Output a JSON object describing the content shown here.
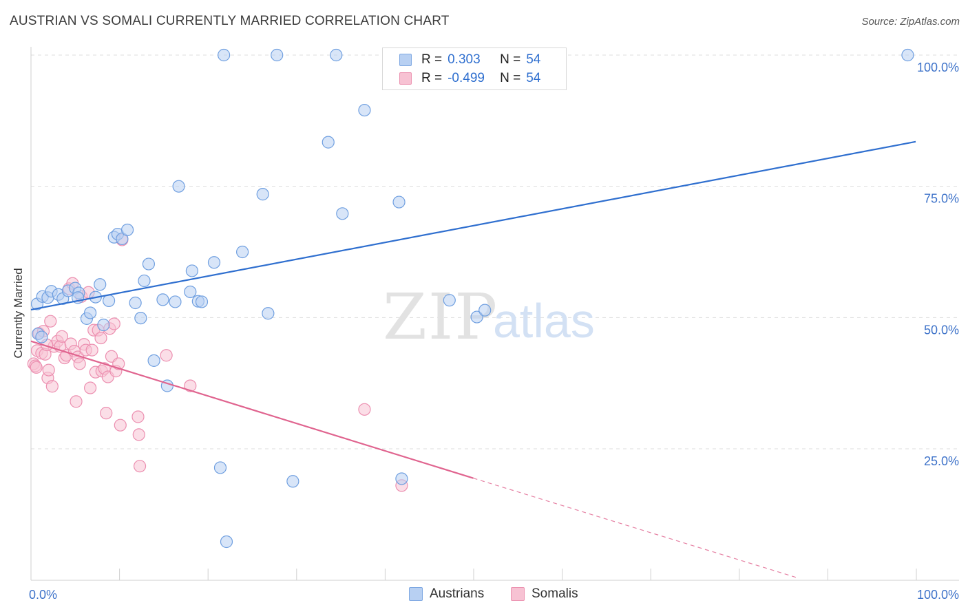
{
  "title": "AUSTRIAN VS SOMALI CURRENTLY MARRIED CORRELATION CHART",
  "source": "Source: ZipAtlas.com",
  "watermark": {
    "zip": "ZIP",
    "atlas": "atlas"
  },
  "legend": {
    "r_label": "R =",
    "n_label": "N =",
    "series": [
      {
        "name": "Austrians",
        "r": "0.303",
        "n": "54"
      },
      {
        "name": "Somalis",
        "r": "-0.499",
        "n": "54"
      }
    ]
  },
  "colors": {
    "blue_fill": "#b8d0f2",
    "blue_stroke": "#6f9fe0",
    "blue_line": "#2f6fcf",
    "pink_fill": "#f7c2d3",
    "pink_stroke": "#ec8fb0",
    "pink_line": "#e0648f",
    "tick_label": "#3d72c9",
    "grid": "#dddddd"
  },
  "chart_data": {
    "type": "scatter",
    "title": "AUSTRIAN VS SOMALI CURRENTLY MARRIED CORRELATION CHART",
    "xlabel": "",
    "ylabel": "Currently Married",
    "xlim": [
      0,
      100
    ],
    "ylim": [
      3,
      100
    ],
    "x_tick_labels": [
      "0.0%",
      "100.0%"
    ],
    "y_ticks": [
      25,
      50,
      75,
      100
    ],
    "y_tick_labels": [
      "25.0%",
      "50.0%",
      "75.0%",
      "100.0%"
    ],
    "grid": "horizontal dashed",
    "series": [
      {
        "name": "Austrians",
        "color": "blue",
        "trend": {
          "x0": 0,
          "y0": 51.5,
          "x1": 100,
          "y1": 83.5
        },
        "points": [
          [
            0.7,
            52.6
          ],
          [
            1.3,
            54
          ],
          [
            1.9,
            53.8
          ],
          [
            2.3,
            55
          ],
          [
            3.1,
            54.4
          ],
          [
            3.6,
            53.6
          ],
          [
            4.2,
            55.1
          ],
          [
            5.0,
            55.6
          ],
          [
            5.4,
            54.7
          ],
          [
            6.3,
            49.8
          ],
          [
            6.7,
            50.9
          ],
          [
            7.3,
            53.9
          ],
          [
            7.8,
            56.3
          ],
          [
            8.2,
            48.6
          ],
          [
            8.8,
            53.2
          ],
          [
            9.4,
            65.3
          ],
          [
            9.8,
            65.9
          ],
          [
            10.3,
            65
          ],
          [
            10.9,
            66.7
          ],
          [
            11.8,
            52.8
          ],
          [
            12.4,
            49.9
          ],
          [
            12.8,
            57
          ],
          [
            13.3,
            60.2
          ],
          [
            13.9,
            41.8
          ],
          [
            14.9,
            53.4
          ],
          [
            15.4,
            37
          ],
          [
            16.3,
            53
          ],
          [
            16.7,
            75
          ],
          [
            18.0,
            54.9
          ],
          [
            18.2,
            58.9
          ],
          [
            18.9,
            53.1
          ],
          [
            19.3,
            53
          ],
          [
            20.7,
            60.5
          ],
          [
            21.4,
            21.4
          ],
          [
            21.8,
            100
          ],
          [
            22.1,
            7.3
          ],
          [
            23.9,
            62.5
          ],
          [
            26.2,
            73.5
          ],
          [
            26.8,
            50.8
          ],
          [
            27.8,
            100
          ],
          [
            29.6,
            18.8
          ],
          [
            33.6,
            83.4
          ],
          [
            34.5,
            100
          ],
          [
            35.2,
            69.8
          ],
          [
            37.7,
            89.5
          ],
          [
            41.6,
            72
          ],
          [
            41.9,
            19.3
          ],
          [
            47.3,
            53.3
          ],
          [
            50.4,
            50.1
          ],
          [
            51.3,
            51.4
          ],
          [
            99.1,
            100
          ],
          [
            0.8,
            46.9
          ],
          [
            1.2,
            46.3
          ],
          [
            5.3,
            53.8
          ]
        ]
      },
      {
        "name": "Somalis",
        "color": "pink",
        "trend": {
          "x0": 0,
          "y0": 45.5,
          "x1": 50,
          "y1": 19.4
        },
        "trend_dashed_to": {
          "x": 86.5,
          "y": 0.5
        },
        "points": [
          [
            0.3,
            41.2
          ],
          [
            0.5,
            40.8
          ],
          [
            0.7,
            43.7
          ],
          [
            0.9,
            47
          ],
          [
            1.2,
            43.2
          ],
          [
            1.4,
            47.4
          ],
          [
            1.6,
            43
          ],
          [
            1.9,
            38.5
          ],
          [
            2.0,
            40
          ],
          [
            2.2,
            49.3
          ],
          [
            2.4,
            36.9
          ],
          [
            2.6,
            44.5
          ],
          [
            3.0,
            45.5
          ],
          [
            3.3,
            44.5
          ],
          [
            3.5,
            46.4
          ],
          [
            3.8,
            42.3
          ],
          [
            4.0,
            42.8
          ],
          [
            4.3,
            55.5
          ],
          [
            4.5,
            45
          ],
          [
            4.7,
            56.5
          ],
          [
            4.9,
            43.6
          ],
          [
            5.1,
            34
          ],
          [
            5.3,
            42.5
          ],
          [
            5.5,
            41.2
          ],
          [
            5.7,
            54
          ],
          [
            6.0,
            44.9
          ],
          [
            6.2,
            43.8
          ],
          [
            6.5,
            54.8
          ],
          [
            6.7,
            36.6
          ],
          [
            6.9,
            43.8
          ],
          [
            7.1,
            47.6
          ],
          [
            7.3,
            39.6
          ],
          [
            7.6,
            47.6
          ],
          [
            7.9,
            46.1
          ],
          [
            8.0,
            39.8
          ],
          [
            8.3,
            40.3
          ],
          [
            8.5,
            31.8
          ],
          [
            8.7,
            38.7
          ],
          [
            8.9,
            47.9
          ],
          [
            9.1,
            42.6
          ],
          [
            9.4,
            48.8
          ],
          [
            9.6,
            39.8
          ],
          [
            9.9,
            41.2
          ],
          [
            10.1,
            29.5
          ],
          [
            10.3,
            64.8
          ],
          [
            12.1,
            31.1
          ],
          [
            12.2,
            27.7
          ],
          [
            12.3,
            21.7
          ],
          [
            15.3,
            42.8
          ],
          [
            18.0,
            37
          ],
          [
            37.7,
            32.5
          ],
          [
            41.9,
            18
          ],
          [
            0.6,
            40.5
          ],
          [
            1.8,
            44.8
          ]
        ]
      }
    ]
  }
}
